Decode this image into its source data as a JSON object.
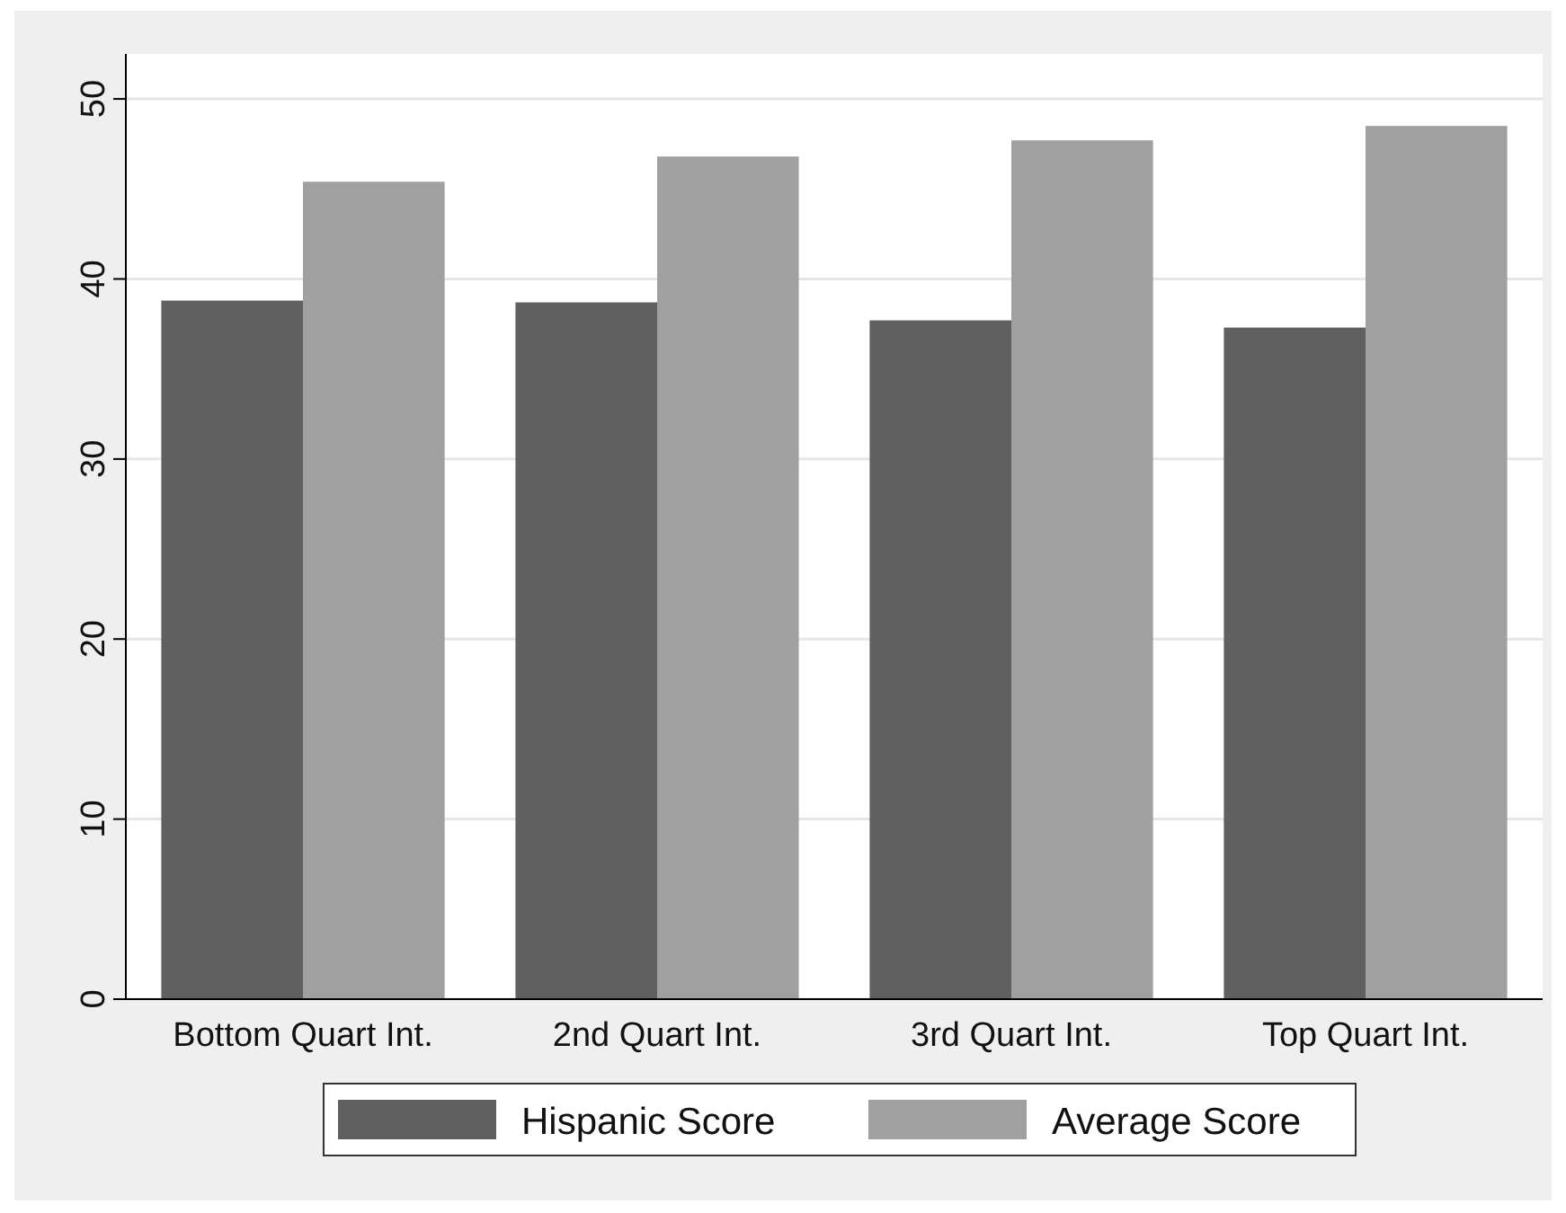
{
  "chart_data": {
    "type": "bar",
    "categories": [
      "Bottom Quart Int.",
      "2nd Quart Int.",
      "3rd Quart Int.",
      "Top Quart Int."
    ],
    "series": [
      {
        "name": "Hispanic Score",
        "color": "#606060",
        "values": [
          38.8,
          38.7,
          37.7,
          37.3
        ]
      },
      {
        "name": "Average Score",
        "color": "#a0a0a0",
        "values": [
          45.4,
          46.8,
          47.7,
          48.5
        ]
      }
    ],
    "ylim": [
      0,
      52.5
    ],
    "yticks": [
      0,
      10,
      20,
      30,
      40,
      50
    ],
    "grid": "y",
    "legend": "bottom"
  }
}
